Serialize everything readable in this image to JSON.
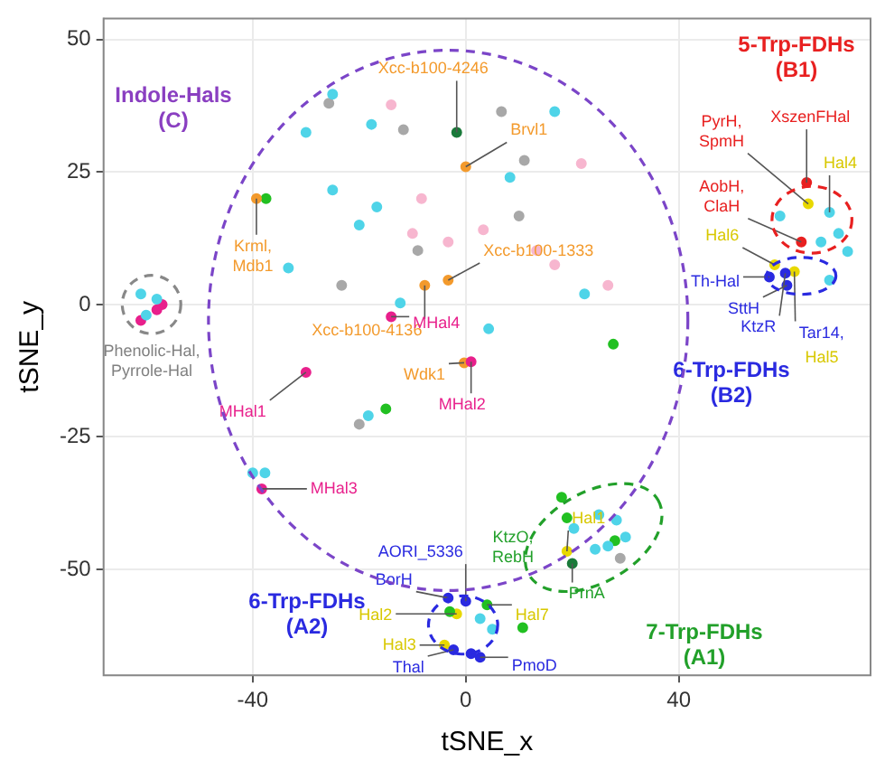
{
  "chart_data": {
    "type": "scatter",
    "xlabel": "tSNE_x",
    "ylabel": "tSNE_y",
    "xlim": [
      -68,
      76
    ],
    "ylim": [
      -70,
      54
    ],
    "xticks": [
      -40,
      0,
      40
    ],
    "yticks": [
      -50,
      -25,
      0,
      25,
      50
    ],
    "grid": true,
    "legend": false,
    "marker": "circle",
    "series": [
      {
        "color": "#4fd4e8",
        "x": [
          -61,
          -58,
          -60,
          -40,
          -37.7,
          -18.3,
          59,
          68.3,
          70,
          66.7,
          71.7,
          68.3,
          20.3,
          25,
          28.3,
          26.7,
          30,
          24.3,
          2.7,
          5,
          -25,
          -17.7,
          -30,
          -25,
          -20,
          -33.3,
          -12.3,
          4.3,
          8.3,
          16.7,
          22.3,
          -16.7
        ],
        "values": [
          2,
          1,
          -2,
          -31.8,
          -31.8,
          -21,
          16.7,
          17.4,
          13.4,
          11.8,
          10,
          4.6,
          -42.3,
          -39.7,
          -40.7,
          -45.6,
          -43.9,
          -46.2,
          -59.3,
          -61.3,
          39.7,
          34,
          32.5,
          21.6,
          15,
          6.9,
          0.3,
          -4.6,
          24,
          36.4,
          2,
          18.4
        ]
      },
      {
        "color": "#f7b6cf",
        "x": [
          -14,
          -10,
          -3.3,
          3.3,
          13.3,
          16.7,
          26.7,
          21.7,
          -8.3
        ],
        "values": [
          37.7,
          13.4,
          11.8,
          14.1,
          10.2,
          7.5,
          3.6,
          26.6,
          20
        ]
      },
      {
        "color": "#a8a8a8",
        "x": [
          -20,
          29,
          -25.7,
          -23.3,
          -9,
          10,
          6.7,
          -11.7,
          11
        ],
        "values": [
          -22.6,
          -47.9,
          38,
          3.6,
          10.2,
          16.7,
          36.4,
          33,
          27.2
        ]
      },
      {
        "color": "#e8208c",
        "x": [
          -58,
          -61,
          -57,
          -14,
          1,
          -30,
          -38.3
        ],
        "values": [
          -1,
          -3,
          0,
          -2.3,
          -10.8,
          -12.8,
          -34.8
        ]
      },
      {
        "color": "#f39a2c",
        "x": [
          -39.3,
          -3.3,
          -7.7,
          -0.3,
          0
        ],
        "values": [
          20,
          4.6,
          3.6,
          -11,
          26
        ]
      },
      {
        "color": "#22c022",
        "x": [
          -37.5,
          -15,
          27.7,
          18,
          19,
          28,
          4,
          10.7,
          -3
        ],
        "values": [
          20,
          -19.7,
          -7.5,
          -36.4,
          -40.3,
          -44.6,
          -56.7,
          -61,
          -58
        ]
      },
      {
        "color": "#1a7a3a",
        "x": [
          -1.7,
          20
        ],
        "values": [
          32.5,
          -48.9
        ]
      },
      {
        "color": "#2a2ae0",
        "x": [
          60.3,
          60,
          57,
          -3.3,
          0,
          -2.3,
          1,
          2.7
        ],
        "values": [
          3.6,
          5.9,
          5.2,
          -55.4,
          -56,
          -65.2,
          -65.9,
          -66.6
        ]
      },
      {
        "color": "#e8d800",
        "x": [
          64.3,
          58,
          61.7,
          19,
          -1.7,
          -4
        ],
        "values": [
          19,
          7.5,
          6.2,
          -46.6,
          -58.4,
          -64.3
        ]
      },
      {
        "color": "#e82020",
        "x": [
          64,
          63
        ],
        "values": [
          23,
          11.8
        ]
      }
    ],
    "annotations": [
      "Indole-Hals\n(C)",
      "Phenolic-Hal,\nPyrrole-Hal",
      {
        "text": "Xcc-b100-4246",
        "x": -1.7,
        "y": 32.5
      },
      {
        "text": "Brvl1",
        "x": 0,
        "y": 26
      },
      {
        "text": "Krml,\nMdb1",
        "x": -39.3,
        "y": 20
      },
      {
        "text": "Xcc-b100-1333",
        "x": -3.3,
        "y": 4.6
      },
      {
        "text": "Xcc-b100-4136",
        "x": -7.7,
        "y": 3.6
      },
      {
        "text": "MHal4",
        "x": -14,
        "y": -2.3
      },
      {
        "text": "Wdk1",
        "x": -0.3,
        "y": -11
      },
      {
        "text": "MHal2",
        "x": 1,
        "y": -10.8
      },
      {
        "text": "MHal1",
        "x": -30,
        "y": -12.8
      },
      {
        "text": "MHal3",
        "x": -38.3,
        "y": -34.8
      },
      "5-Trp-FDHs\n(B1)",
      {
        "text": "XszenFHal",
        "x": 64,
        "y": 23
      },
      {
        "text": "PyrH,\nSpmH",
        "x": 64.3,
        "y": 19
      },
      {
        "text": "Hal4",
        "x": 68.3,
        "y": 17.4
      },
      {
        "text": "AobH,\nClaH",
        "x": 63,
        "y": 11.8
      },
      {
        "text": "Hal6",
        "x": 58,
        "y": 7.5
      },
      {
        "text": "Th-Hal",
        "x": 57,
        "y": 5.2
      },
      {
        "text": "SttH",
        "x": 60.3,
        "y": 3.6
      },
      {
        "text": "KtzR",
        "x": 60,
        "y": 5.9
      },
      {
        "text": "Tar14,",
        "x": 61.7,
        "y": 6.2
      },
      "Hal5",
      "6-Trp-FDHs\n(B2)",
      {
        "text": "AORI_5336",
        "x": 0,
        "y": -56
      },
      {
        "text": "BorH",
        "x": -3.3,
        "y": -55.4
      },
      {
        "text": "Hal2",
        "x": -1.7,
        "y": -58.4
      },
      {
        "text": "Hal3",
        "x": -4,
        "y": -64.3
      },
      {
        "text": "Thal",
        "x": -2.3,
        "y": -65.2
      },
      {
        "text": "PmoD",
        "x": 2.7,
        "y": -66.6
      },
      "6-Trp-FDHs\n(A2)",
      "KtzO,\nRebH",
      {
        "text": "Hal7",
        "x": 4,
        "y": -56.7
      },
      {
        "text": "Hal1",
        "x": 19,
        "y": -46.6
      },
      {
        "text": "PrnA",
        "x": 20,
        "y": -48.9
      },
      "7-Trp-FDHs\n(A1)"
    ]
  }
}
